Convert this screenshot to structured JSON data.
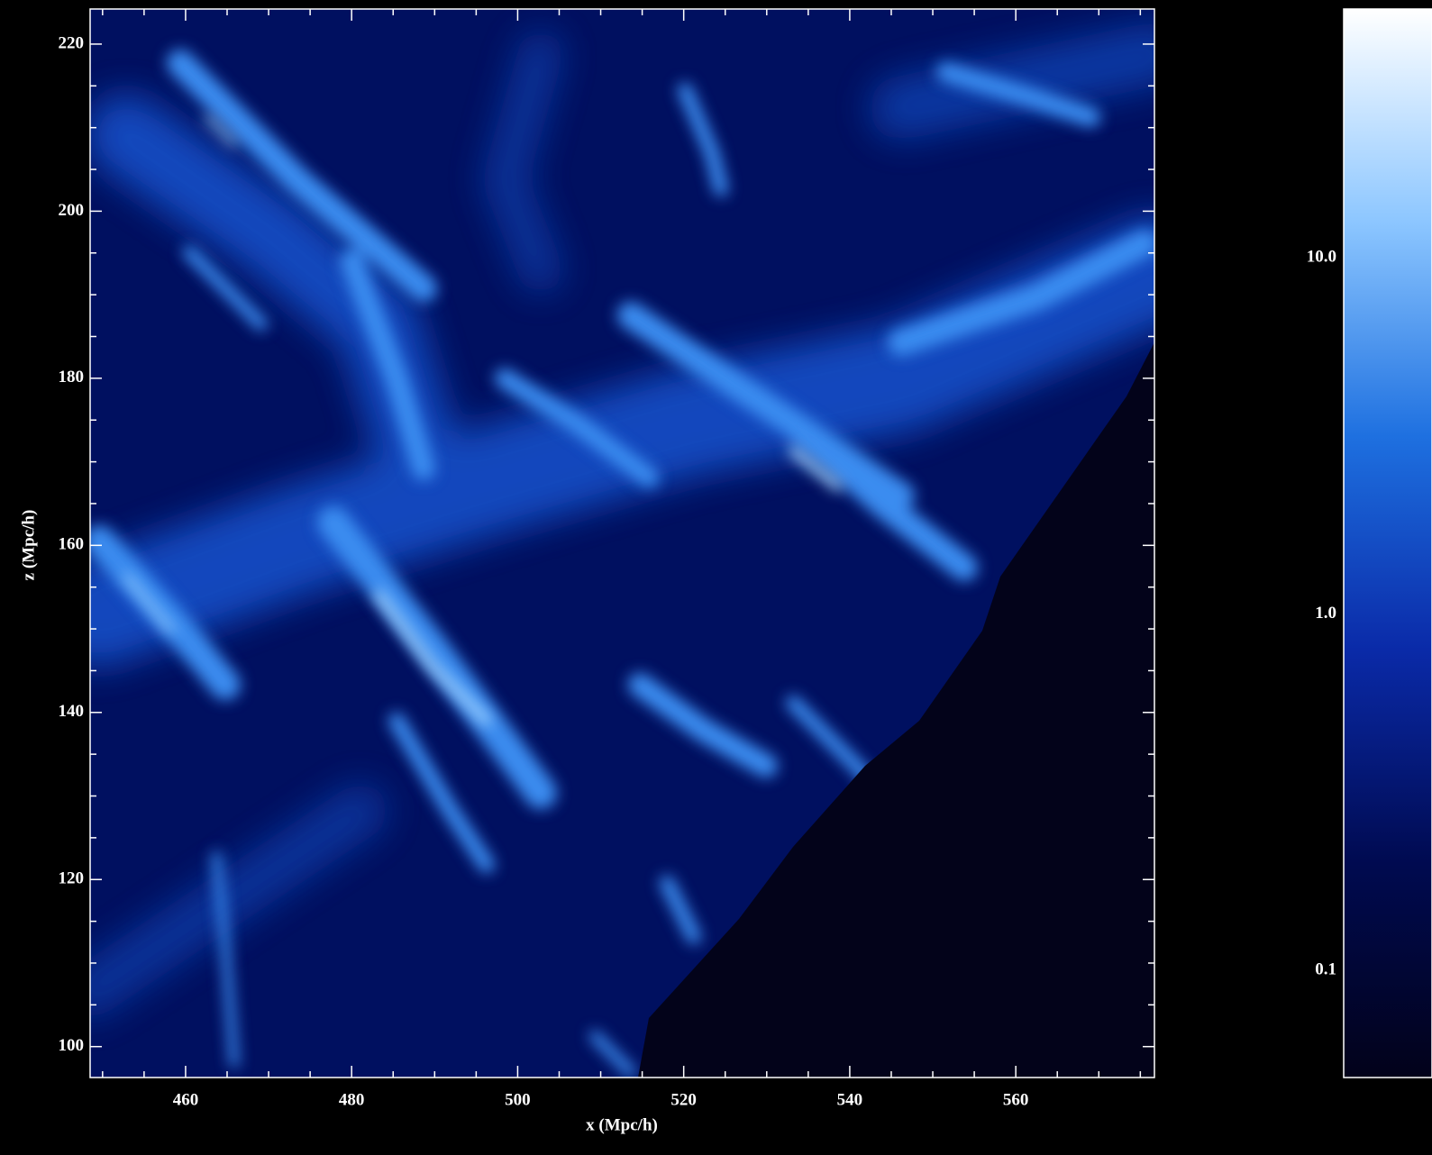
{
  "chart_data": {
    "type": "heatmap",
    "xlabel": "x (Mpc/h)",
    "ylabel": "z (Mpc/h)",
    "xlim": [
      448.5,
      576.7
    ],
    "xticks": [
      460,
      480,
      500,
      520,
      540,
      560
    ],
    "ylim": [
      96.3,
      224.2
    ],
    "yticks": [
      100,
      120,
      140,
      160,
      180,
      200,
      220
    ],
    "colorbar": {
      "log": true,
      "lim": [
        0.05,
        50
      ],
      "ticks": [
        {
          "value": 10,
          "label": "10.0"
        },
        {
          "value": 1,
          "label": "1.0"
        },
        {
          "value": 0.1,
          "label": "0.1"
        }
      ],
      "colors": [
        "#02021a",
        "#000a50",
        "#0a2aa8",
        "#1e70e0",
        "#8cc6ff",
        "#ffffff"
      ]
    }
  }
}
